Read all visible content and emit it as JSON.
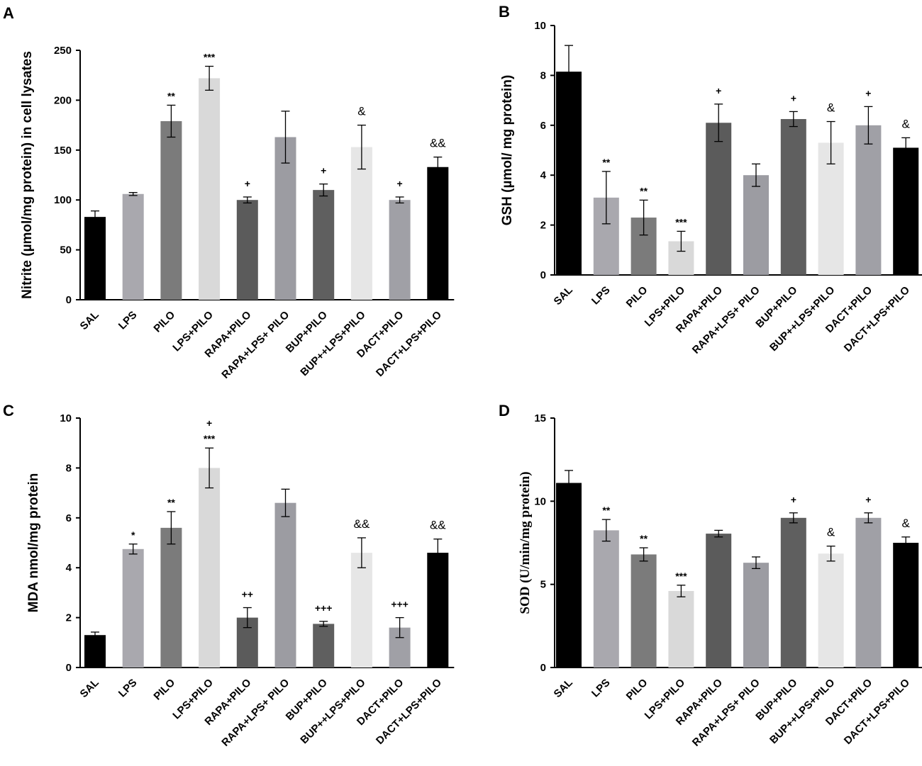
{
  "chart_data": [
    {
      "type": "bar",
      "panel": "A",
      "ylabel": "Nitrite (µmol/mg protein) in cell lysates",
      "ylim": [
        0,
        250
      ],
      "yticks": [
        0,
        50,
        100,
        150,
        200,
        250
      ],
      "categories": [
        "SAL",
        "LPS",
        "PILO",
        "LPS+PILO",
        "RAPA+PILO",
        "RAPA+LPS+ PILO",
        "BUP+PILO",
        "BUP++LPS+PILO",
        "DACT+PILO",
        "DACT+LPS+PILO"
      ],
      "values": [
        83,
        106,
        179,
        222,
        100,
        163,
        110,
        153,
        100,
        133
      ],
      "errors": [
        6,
        1.5,
        16,
        12,
        3,
        26,
        6,
        22,
        3,
        10
      ],
      "annotations": [
        "",
        "",
        "**",
        "***",
        "+",
        "",
        "+",
        "&",
        "+",
        "&&"
      ],
      "colors": [
        "#000000",
        "#a9a8ae",
        "#7b7b7b",
        "#d9d9d9",
        "#5b5b5b",
        "#9c9ca2",
        "#5f5f5f",
        "#e6e6e6",
        "#a0a0a6",
        "#000000"
      ]
    },
    {
      "type": "bar",
      "panel": "B",
      "ylabel": "GSH (µmol/ mg protein)",
      "ylim": [
        0,
        10
      ],
      "yticks": [
        0,
        2,
        4,
        6,
        8,
        10
      ],
      "categories": [
        "SAL",
        "LPS",
        "PILO",
        "LPS+PILO",
        "RAPA+PILO",
        "RAPA+LPS+ PILO",
        "BUP+PILO",
        "BUP++LPS+PILO",
        "DACT+PILO",
        "DACT+LPS+PILO"
      ],
      "values": [
        8.15,
        3.1,
        2.3,
        1.35,
        6.1,
        4.0,
        6.25,
        5.3,
        6.0,
        5.1
      ],
      "errors": [
        1.05,
        1.05,
        0.7,
        0.4,
        0.75,
        0.45,
        0.3,
        0.85,
        0.75,
        0.4
      ],
      "annotations": [
        "",
        "**",
        "**",
        "***",
        "+",
        "",
        "+",
        "&",
        "+",
        "&"
      ],
      "colors": [
        "#000000",
        "#a9a8ae",
        "#7b7b7b",
        "#d9d9d9",
        "#5b5b5b",
        "#9c9ca2",
        "#5f5f5f",
        "#e6e6e6",
        "#a0a0a6",
        "#000000"
      ]
    },
    {
      "type": "bar",
      "panel": "C",
      "ylabel": "MDA nmol/mg protein",
      "ylim": [
        0,
        10
      ],
      "yticks": [
        0,
        2,
        4,
        6,
        8,
        10
      ],
      "categories": [
        "SAL",
        "LPS",
        "PILO",
        "LPS+PILO",
        "RAPA+PILO",
        "RAPA+LPS+ PILO",
        "BUP+PILO",
        "BUP++LPS+PILO",
        "DACT+PILO",
        "DACT+LPS+PILO"
      ],
      "values": [
        1.3,
        4.75,
        5.6,
        8.0,
        2.0,
        6.6,
        1.75,
        4.6,
        1.6,
        4.6
      ],
      "errors": [
        0.12,
        0.2,
        0.65,
        0.8,
        0.4,
        0.55,
        0.1,
        0.6,
        0.4,
        0.55
      ],
      "annotations": [
        "",
        "*",
        "**",
        "***",
        "++",
        "",
        "+++",
        "&&",
        "+++",
        "&&"
      ],
      "annotations_top": [
        "",
        "",
        "",
        "+",
        "",
        "",
        "",
        "",
        "",
        ""
      ],
      "colors": [
        "#000000",
        "#a9a8ae",
        "#7b7b7b",
        "#d9d9d9",
        "#5b5b5b",
        "#9c9ca2",
        "#5f5f5f",
        "#e6e6e6",
        "#a0a0a6",
        "#000000"
      ]
    },
    {
      "type": "bar",
      "panel": "D",
      "ylabel": "SOD (U/min/mg protein)",
      "ylim": [
        0,
        15
      ],
      "yticks": [
        0,
        5,
        10,
        15
      ],
      "categories": [
        "SAL",
        "LPS",
        "PILO",
        "LPS+PILO",
        "RAPA+PILO",
        "RAPA+LPS+ PILO",
        "BUP+PILO",
        "BUP++LPS+PILO",
        "DACT+PILO",
        "DACT+LPS+PILO"
      ],
      "values": [
        11.1,
        8.25,
        6.8,
        4.6,
        8.05,
        6.3,
        9.0,
        6.85,
        9.0,
        7.5
      ],
      "errors": [
        0.75,
        0.65,
        0.4,
        0.35,
        0.2,
        0.35,
        0.3,
        0.45,
        0.3,
        0.35
      ],
      "annotations": [
        "",
        "**",
        "**",
        "***",
        "",
        "",
        "+",
        "&",
        "+",
        "&"
      ],
      "colors": [
        "#000000",
        "#a9a8ae",
        "#7b7b7b",
        "#d9d9d9",
        "#5b5b5b",
        "#9c9ca2",
        "#5f5f5f",
        "#e6e6e6",
        "#a0a0a6",
        "#000000"
      ]
    }
  ]
}
